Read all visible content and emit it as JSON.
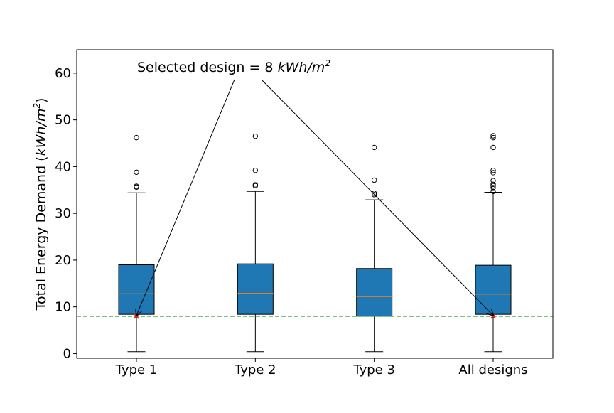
{
  "chart_data": {
    "type": "box",
    "ylabel_main": "Total Energy Demand (",
    "ylabel_unit_base": "kWh/m",
    "ylabel_unit_exp": "2",
    "ylabel_close": ")",
    "ylim": [
      -1,
      65
    ],
    "yticks": [
      0,
      10,
      20,
      30,
      40,
      50,
      60
    ],
    "grid": false,
    "categories": [
      "Type 1",
      "Type 2",
      "Type 3",
      "All designs"
    ],
    "boxes": [
      {
        "name": "Type 1",
        "whislo": 0.4,
        "q1": 8.4,
        "med": 12.8,
        "q3": 19.0,
        "whishi": 34.4,
        "fliers": [
          35.6,
          35.8,
          38.8,
          46.2
        ]
      },
      {
        "name": "Type 2",
        "whislo": 0.4,
        "q1": 8.4,
        "med": 12.9,
        "q3": 19.2,
        "whishi": 34.7,
        "fliers": [
          35.9,
          36.1,
          39.2,
          46.5
        ]
      },
      {
        "name": "Type 3",
        "whislo": 0.4,
        "q1": 8.0,
        "med": 12.2,
        "q3": 18.2,
        "whishi": 32.9,
        "fliers": [
          34.0,
          34.3,
          37.1,
          44.1
        ]
      },
      {
        "name": "All designs",
        "whislo": 0.4,
        "q1": 8.4,
        "med": 12.7,
        "q3": 18.9,
        "whishi": 34.5,
        "fliers": [
          34.7,
          35.5,
          35.9,
          36.2,
          37.0,
          38.7,
          39.2,
          44.1,
          46.2,
          46.6
        ]
      }
    ],
    "reference_line": {
      "value": 8,
      "color": "#2ca02c",
      "style": "dashed"
    },
    "selected_points": [
      {
        "category": "Type 1",
        "value": 8
      },
      {
        "category": "All designs",
        "value": 8
      }
    ],
    "annotation": {
      "text_prefix": "Selected design = 8 ",
      "unit_base": "kWh/m",
      "unit_exp": "2",
      "text_anchor_value": 60,
      "arrow_targets": [
        "Type 1",
        "All designs"
      ]
    },
    "colors": {
      "box_fill": "#1f77b4",
      "median": "#ff7f0e",
      "selected_marker": "#d62728"
    }
  }
}
